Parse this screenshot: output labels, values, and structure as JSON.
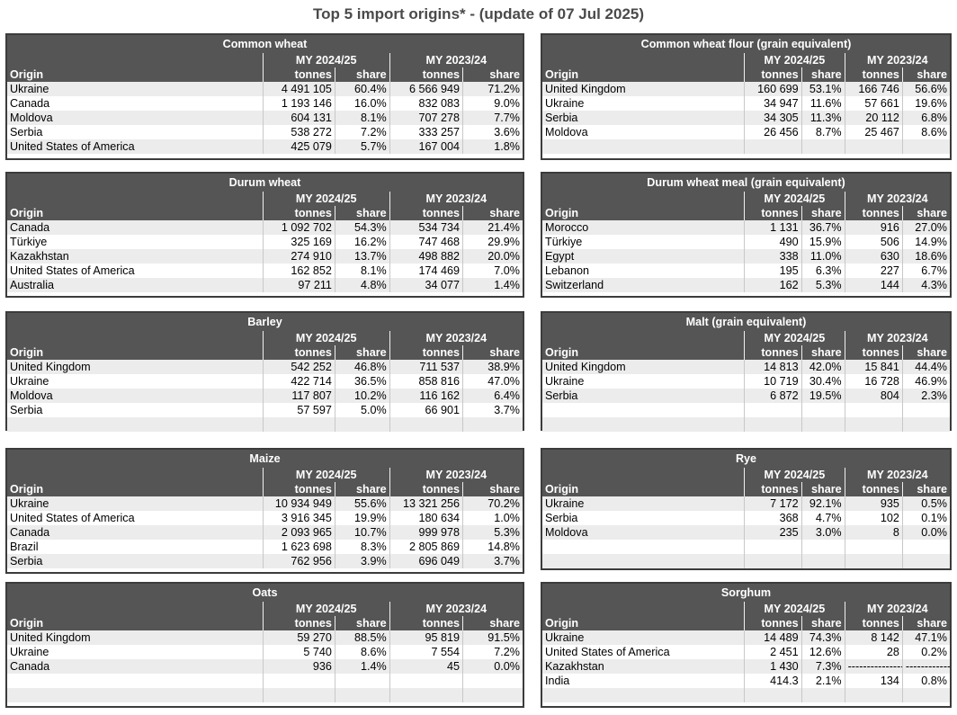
{
  "page_title": "Top 5 import origins* - (update of 07 Jul 2025)",
  "headers": {
    "period_current": "MY 2024/25",
    "period_previous": "MY 2023/24",
    "origin": "Origin",
    "tonnes": "tonnes",
    "share": "share"
  },
  "tables": [
    {
      "title": "Common wheat",
      "rows": [
        [
          "Ukraine",
          "4 491 105",
          "60.4%",
          "6 566 949",
          "71.2%"
        ],
        [
          "Canada",
          "1 193 146",
          "16.0%",
          "832 083",
          "9.0%"
        ],
        [
          "Moldova",
          "604 131",
          "8.1%",
          "707 278",
          "7.7%"
        ],
        [
          "Serbia",
          "538 272",
          "7.2%",
          "333 257",
          "3.6%"
        ],
        [
          "United States of America",
          "425 079",
          "5.7%",
          "167 004",
          "1.8%"
        ]
      ]
    },
    {
      "title": "Common wheat flour (grain equivalent)",
      "rows": [
        [
          "United Kingdom",
          "160 699",
          "53.1%",
          "166 746",
          "56.6%"
        ],
        [
          "Ukraine",
          "34 947",
          "11.6%",
          "57 661",
          "19.6%"
        ],
        [
          "Serbia",
          "34 305",
          "11.3%",
          "20 112",
          "6.8%"
        ],
        [
          "Moldova",
          "26 456",
          "8.7%",
          "25 467",
          "8.6%"
        ],
        [
          "",
          "",
          "",
          "",
          ""
        ]
      ]
    },
    {
      "title": "Durum wheat",
      "rows": [
        [
          "Canada",
          "1 092 702",
          "54.3%",
          "534 734",
          "21.4%"
        ],
        [
          "Türkiye",
          "325 169",
          "16.2%",
          "747 468",
          "29.9%"
        ],
        [
          "Kazakhstan",
          "274 910",
          "13.7%",
          "498 882",
          "20.0%"
        ],
        [
          "United States of America",
          "162 852",
          "8.1%",
          "174 469",
          "7.0%"
        ],
        [
          "Australia",
          "97 211",
          "4.8%",
          "34 077",
          "1.4%"
        ]
      ]
    },
    {
      "title": "Durum wheat meal (grain equivalent)",
      "rows": [
        [
          "Morocco",
          "1 131",
          "36.7%",
          "916",
          "27.0%"
        ],
        [
          "Türkiye",
          "490",
          "15.9%",
          "506",
          "14.9%"
        ],
        [
          "Egypt",
          "338",
          "11.0%",
          "630",
          "18.6%"
        ],
        [
          "Lebanon",
          "195",
          "6.3%",
          "227",
          "6.7%"
        ],
        [
          "Switzerland",
          "162",
          "5.3%",
          "144",
          "4.3%"
        ]
      ]
    },
    {
      "title": "Barley",
      "rows": [
        [
          "United Kingdom",
          "542 252",
          "46.8%",
          "711 537",
          "38.9%"
        ],
        [
          "Ukraine",
          "422 714",
          "36.5%",
          "858 816",
          "47.0%"
        ],
        [
          "Moldova",
          "117 807",
          "10.2%",
          "116 162",
          "6.4%"
        ],
        [
          "Serbia",
          "57 597",
          "5.0%",
          "66 901",
          "3.7%"
        ],
        [
          "",
          "",
          "",
          "",
          ""
        ]
      ]
    },
    {
      "title": "Malt (grain equivalent)",
      "rows": [
        [
          "United Kingdom",
          "14 813",
          "42.0%",
          "15 841",
          "44.4%"
        ],
        [
          "Ukraine",
          "10 719",
          "30.4%",
          "16 728",
          "46.9%"
        ],
        [
          "Serbia",
          "6 872",
          "19.5%",
          "804",
          "2.3%"
        ],
        [
          "",
          "",
          "",
          "",
          ""
        ],
        [
          "",
          "",
          "",
          "",
          ""
        ]
      ]
    },
    {
      "title": "Maize",
      "rows": [
        [
          "Ukraine",
          "10 934 949",
          "55.6%",
          "13 321 256",
          "70.2%"
        ],
        [
          "United States of America",
          "3 916 345",
          "19.9%",
          "180 634",
          "1.0%"
        ],
        [
          "Canada",
          "2 093 965",
          "10.7%",
          "999 978",
          "5.3%"
        ],
        [
          "Brazil",
          "1 623 698",
          "8.3%",
          "2 805 869",
          "14.8%"
        ],
        [
          "Serbia",
          "762 956",
          "3.9%",
          "696 049",
          "3.7%"
        ]
      ]
    },
    {
      "title": "Rye",
      "rows": [
        [
          "Ukraine",
          "7 172",
          "92.1%",
          "935",
          "0.5%"
        ],
        [
          "Serbia",
          "368",
          "4.7%",
          "102",
          "0.1%"
        ],
        [
          "Moldova",
          "235",
          "3.0%",
          "8",
          "0.0%"
        ],
        [
          "",
          "",
          "",
          "",
          ""
        ],
        [
          "",
          "",
          "",
          "",
          ""
        ]
      ]
    },
    {
      "title": "Oats",
      "rows": [
        [
          "United Kingdom",
          "59 270",
          "88.5%",
          "95 819",
          "91.5%"
        ],
        [
          "Ukraine",
          "5 740",
          "8.6%",
          "7 554",
          "7.2%"
        ],
        [
          "Canada",
          "936",
          "1.4%",
          "45",
          "0.0%"
        ],
        [
          "",
          "",
          "",
          "",
          ""
        ],
        [
          "",
          "",
          "",
          "",
          ""
        ]
      ]
    },
    {
      "title": "Sorghum",
      "rows": [
        [
          "Ukraine",
          "14 489",
          "74.3%",
          "8 142",
          "47.1%"
        ],
        [
          "United States of America",
          "2 451",
          "12.6%",
          "28",
          "0.2%"
        ],
        [
          "Kazakhstan",
          "1 430",
          "7.3%",
          "----------------",
          "------------"
        ],
        [
          "India",
          "414.3",
          "2.1%",
          "134",
          "0.8%"
        ],
        [
          "",
          "",
          "",
          "",
          ""
        ]
      ]
    }
  ]
}
